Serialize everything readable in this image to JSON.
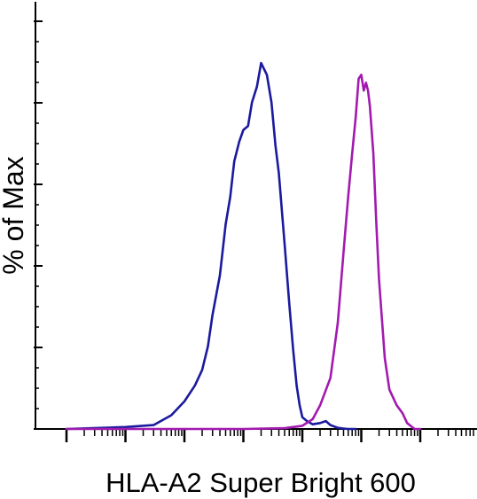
{
  "chart_data": {
    "type": "line",
    "title": "",
    "xlabel": "HLA-A2 Super Bright 600",
    "ylabel": "% of Max",
    "x_scale": "log",
    "x_range": [
      1,
      1000000
    ],
    "y_range": [
      0,
      100
    ],
    "grid": false,
    "legend": "none",
    "series": [
      {
        "color": "#1a1a9e",
        "x": [
          1,
          10,
          30,
          60,
          100,
          150,
          200,
          250,
          300,
          400,
          500,
          600,
          700,
          850,
          1000,
          1200,
          1400,
          1700,
          2000,
          2500,
          3000,
          3500,
          4000,
          5000,
          6000,
          7000,
          8000,
          9000,
          10000,
          12000,
          15000,
          20000,
          25000,
          30000,
          40000,
          50000,
          60000,
          70000,
          80000
        ],
        "y": [
          0,
          0.5,
          1,
          3.5,
          7,
          11,
          15,
          21,
          29,
          39,
          52,
          59,
          68,
          73,
          76,
          77,
          83,
          87,
          93,
          90,
          83,
          72,
          65,
          47,
          32,
          20,
          11,
          6,
          3,
          2,
          1.2,
          1.5,
          2,
          1,
          0.3,
          0.1,
          0,
          0,
          0
        ]
      },
      {
        "color": "#a21aaf",
        "x": [
          1,
          1000,
          5000,
          10000,
          15000,
          20000,
          30000,
          40000,
          50000,
          60000,
          70000,
          80000,
          90000,
          100000,
          110000,
          120000,
          130000,
          140000,
          160000,
          180000,
          200000,
          250000,
          300000,
          400000,
          500000,
          600000,
          800000,
          1000000
        ],
        "y": [
          0,
          0,
          0.2,
          0.8,
          2.5,
          6,
          13,
          27,
          45,
          59,
          70,
          79,
          89,
          90,
          86,
          88,
          86,
          82,
          70,
          52,
          38,
          18,
          10,
          6,
          4,
          1.5,
          0,
          0
        ]
      }
    ]
  }
}
